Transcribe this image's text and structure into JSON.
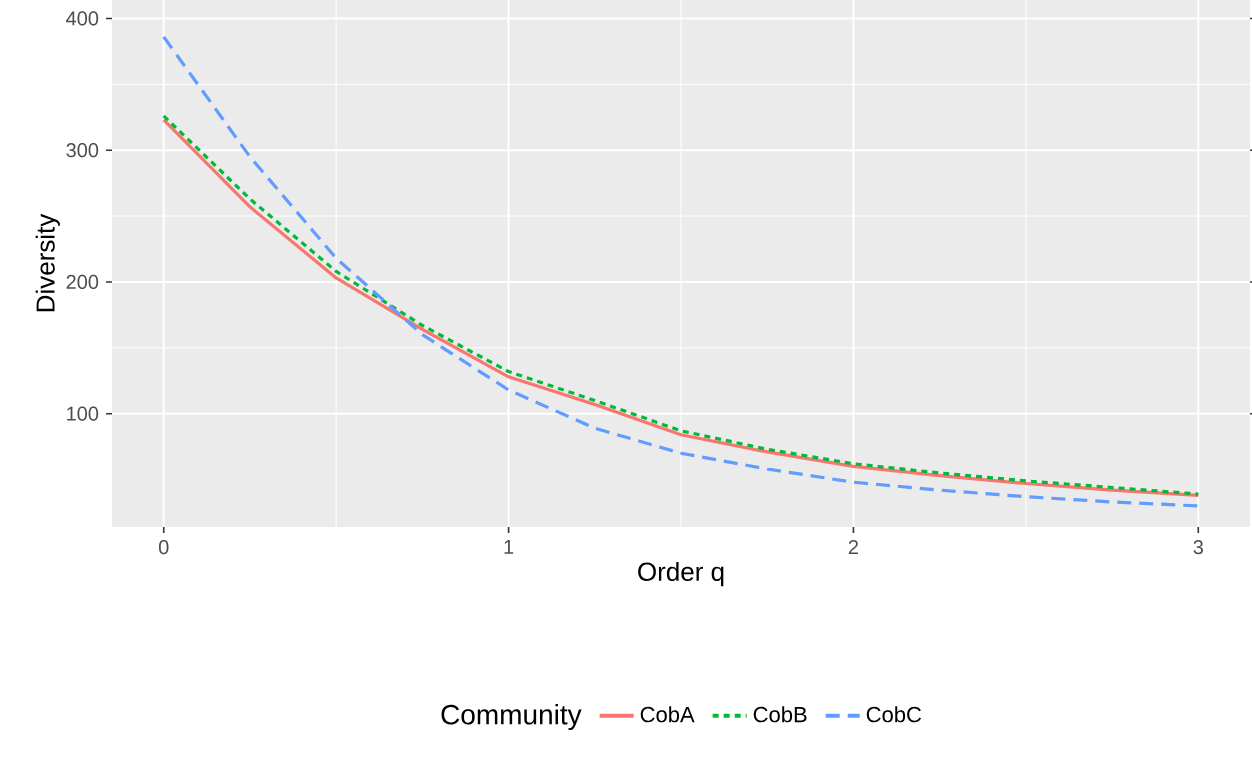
{
  "chart_data": {
    "type": "line",
    "xlabel": "Order q",
    "ylabel": "Diversity",
    "legend_title": "Community",
    "x": [
      0,
      0.25,
      0.5,
      0.75,
      1,
      1.25,
      1.5,
      1.75,
      2,
      2.25,
      2.5,
      2.75,
      3
    ],
    "series": [
      {
        "name": "CobA",
        "color": "#f8766d",
        "line_style": "solid",
        "values": [
          323,
          257,
          203,
          164,
          128,
          107,
          84,
          71,
          60,
          53,
          47,
          42,
          38
        ]
      },
      {
        "name": "CobB",
        "color": "#00ba38",
        "line_style": "dotted",
        "values": [
          326,
          263,
          208,
          167,
          132,
          110,
          87,
          73,
          62,
          55,
          49,
          44,
          39
        ]
      },
      {
        "name": "CobC",
        "color": "#619cff",
        "line_style": "dashed",
        "values": [
          386,
          295,
          218,
          160,
          118,
          89,
          70,
          58,
          48,
          42,
          37,
          33,
          30
        ]
      }
    ],
    "xlim": [
      -0.15,
      3.15
    ],
    "ylim": [
      14,
      414
    ],
    "xticks": [
      0,
      1,
      2,
      3
    ],
    "yticks": [
      100,
      200,
      300,
      400
    ],
    "grid": true,
    "legend": "bottom",
    "marker": "none"
  }
}
